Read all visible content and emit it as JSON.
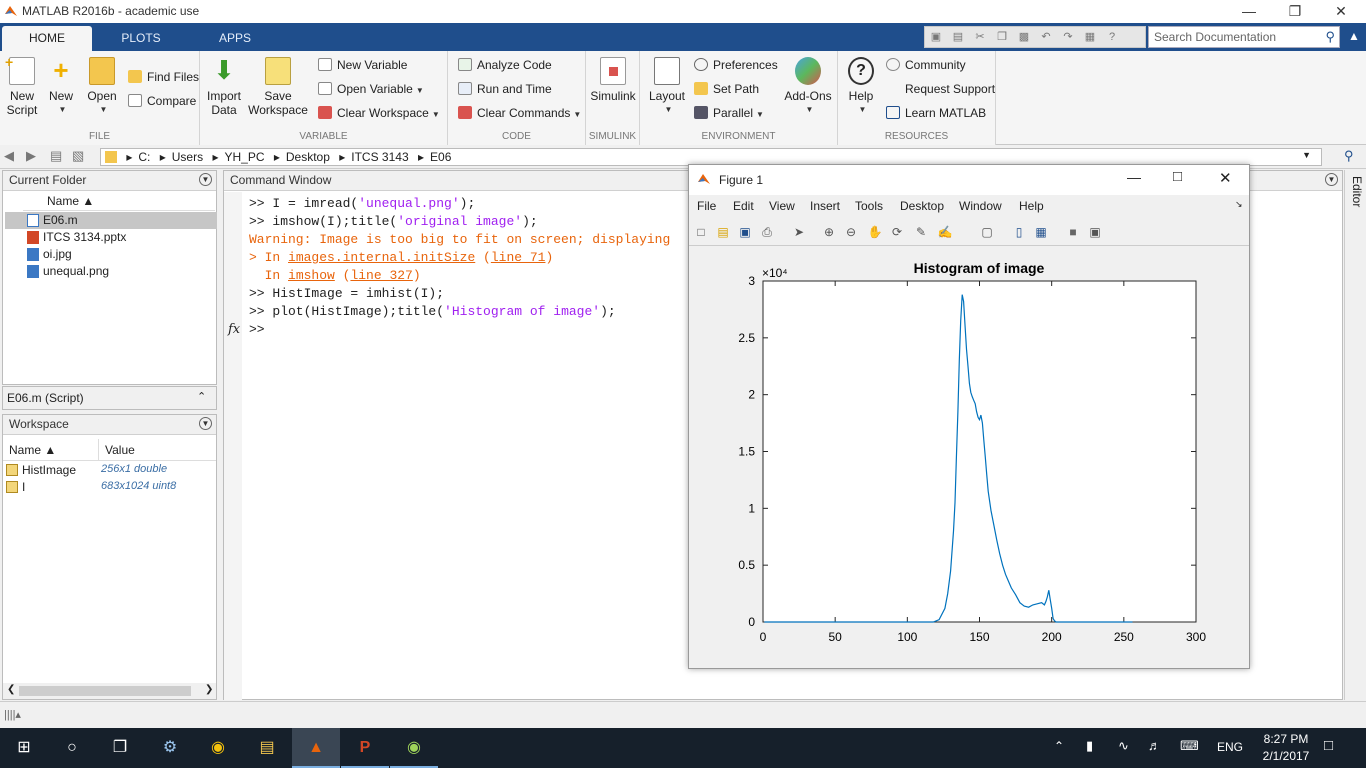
{
  "window": {
    "title": "MATLAB R2016b - academic use"
  },
  "tabs": [
    {
      "label": "HOME"
    },
    {
      "label": "PLOTS"
    },
    {
      "label": "APPS"
    }
  ],
  "search": {
    "placeholder": "Search Documentation"
  },
  "ribbon": {
    "file": {
      "label": "FILE",
      "new_script": "New\nScript",
      "new": "New",
      "open": "Open",
      "find_files": "Find Files",
      "compare": "Compare"
    },
    "variable": {
      "label": "VARIABLE",
      "import_data": "Import\nData",
      "save_workspace": "Save\nWorkspace",
      "new_variable": "New Variable",
      "open_variable": "Open Variable",
      "clear_workspace": "Clear Workspace"
    },
    "code": {
      "label": "CODE",
      "analyze_code": "Analyze Code",
      "run_and_time": "Run and Time",
      "clear_commands": "Clear Commands"
    },
    "simulink": {
      "label": "SIMULINK",
      "simulink": "Simulink"
    },
    "environment": {
      "label": "ENVIRONMENT",
      "layout": "Layout",
      "preferences": "Preferences",
      "set_path": "Set Path",
      "parallel": "Parallel",
      "add_ons": "Add-Ons"
    },
    "resources": {
      "label": "RESOURCES",
      "help": "Help",
      "community": "Community",
      "request_support": "Request Support",
      "learn_matlab": "Learn MATLAB"
    }
  },
  "address": {
    "path": [
      "C:",
      "Users",
      "YH_PC",
      "Desktop",
      "ITCS 3143",
      "E06"
    ]
  },
  "current_folder": {
    "title": "Current Folder",
    "col_name": "Name ▲",
    "files": [
      {
        "name": "E06.m",
        "selected": true
      },
      {
        "name": "ITCS 3134.pptx"
      },
      {
        "name": "oi.jpg"
      },
      {
        "name": "unequal.png"
      }
    ],
    "details": "E06.m  (Script)"
  },
  "workspace": {
    "title": "Workspace",
    "col_name": "Name ▲",
    "col_value": "Value",
    "vars": [
      {
        "name": "HistImage",
        "value": "256x1 double"
      },
      {
        "name": "I",
        "value": "683x1024 uint8"
      }
    ]
  },
  "command_window": {
    "title": "Command Window",
    "l1_a": ">> I = imread(",
    "l1_s": "'unequal.png'",
    "l1_b": ");",
    "l2_a": ">> imshow(I);title(",
    "l2_s": "'original image'",
    "l2_b": ");",
    "l3": "Warning: Image is too big to fit on screen; displaying",
    "l4_a": "> In ",
    "l4_link": "images.internal.initSize",
    "l4_b": " (",
    "l4_line": "line 71",
    "l4_c": ")",
    "l5_a": "  In ",
    "l5_link": "imshow",
    "l5_b": " (",
    "l5_line": "line 327",
    "l5_c": ")",
    "l6": ">> HistImage = imhist(I);",
    "l7_a": ">> plot(HistImage);title(",
    "l7_s": "'Histogram of image'",
    "l7_b": ");",
    "fx": "fx",
    "prompt": ">>"
  },
  "editor_tab": "Editor",
  "figure": {
    "title": "Figure 1",
    "menu": [
      "File",
      "Edit",
      "View",
      "Insert",
      "Tools",
      "Desktop",
      "Window",
      "Help"
    ]
  },
  "chart_data": {
    "type": "line",
    "title": "Histogram of image",
    "xlabel": "",
    "ylabel": "",
    "y_multiplier": "×10⁴",
    "xlim": [
      0,
      300
    ],
    "ylim": [
      0,
      3
    ],
    "xticks": [
      0,
      50,
      100,
      150,
      200,
      250,
      300
    ],
    "yticks": [
      0,
      0.5,
      1,
      1.5,
      2,
      2.5,
      3
    ],
    "ytick_labels": [
      "0",
      "0.5",
      "1",
      "1.5",
      "2",
      "2.5",
      "3"
    ],
    "color": "#0072bd",
    "x": [
      1,
      100,
      118,
      122,
      126,
      128,
      130,
      132,
      133,
      134,
      135,
      136,
      137,
      138,
      139,
      140,
      141,
      142,
      143,
      144,
      145,
      146,
      147,
      148,
      149,
      150,
      151,
      152,
      153,
      154,
      155,
      156,
      158,
      160,
      162,
      164,
      166,
      168,
      170,
      172,
      175,
      178,
      181,
      184,
      187,
      190,
      193,
      195,
      196,
      197,
      198,
      199,
      200,
      201,
      202,
      203,
      205,
      220,
      240,
      256
    ],
    "y": [
      0,
      0,
      0,
      0.02,
      0.12,
      0.25,
      0.45,
      0.8,
      1.05,
      1.45,
      1.85,
      2.3,
      2.65,
      2.88,
      2.82,
      2.6,
      2.4,
      2.25,
      2.1,
      2.02,
      1.98,
      1.95,
      1.92,
      1.85,
      1.8,
      1.78,
      1.82,
      1.75,
      1.6,
      1.45,
      1.3,
      1.15,
      0.98,
      0.85,
      0.72,
      0.6,
      0.5,
      0.42,
      0.36,
      0.3,
      0.24,
      0.17,
      0.14,
      0.13,
      0.15,
      0.16,
      0.17,
      0.15,
      0.18,
      0.22,
      0.28,
      0.2,
      0.12,
      0.03,
      0.01,
      0,
      0,
      0,
      0,
      0
    ]
  },
  "taskbar": {
    "lang": "ENG",
    "time": "8:27 PM",
    "date": "2/1/2017"
  }
}
